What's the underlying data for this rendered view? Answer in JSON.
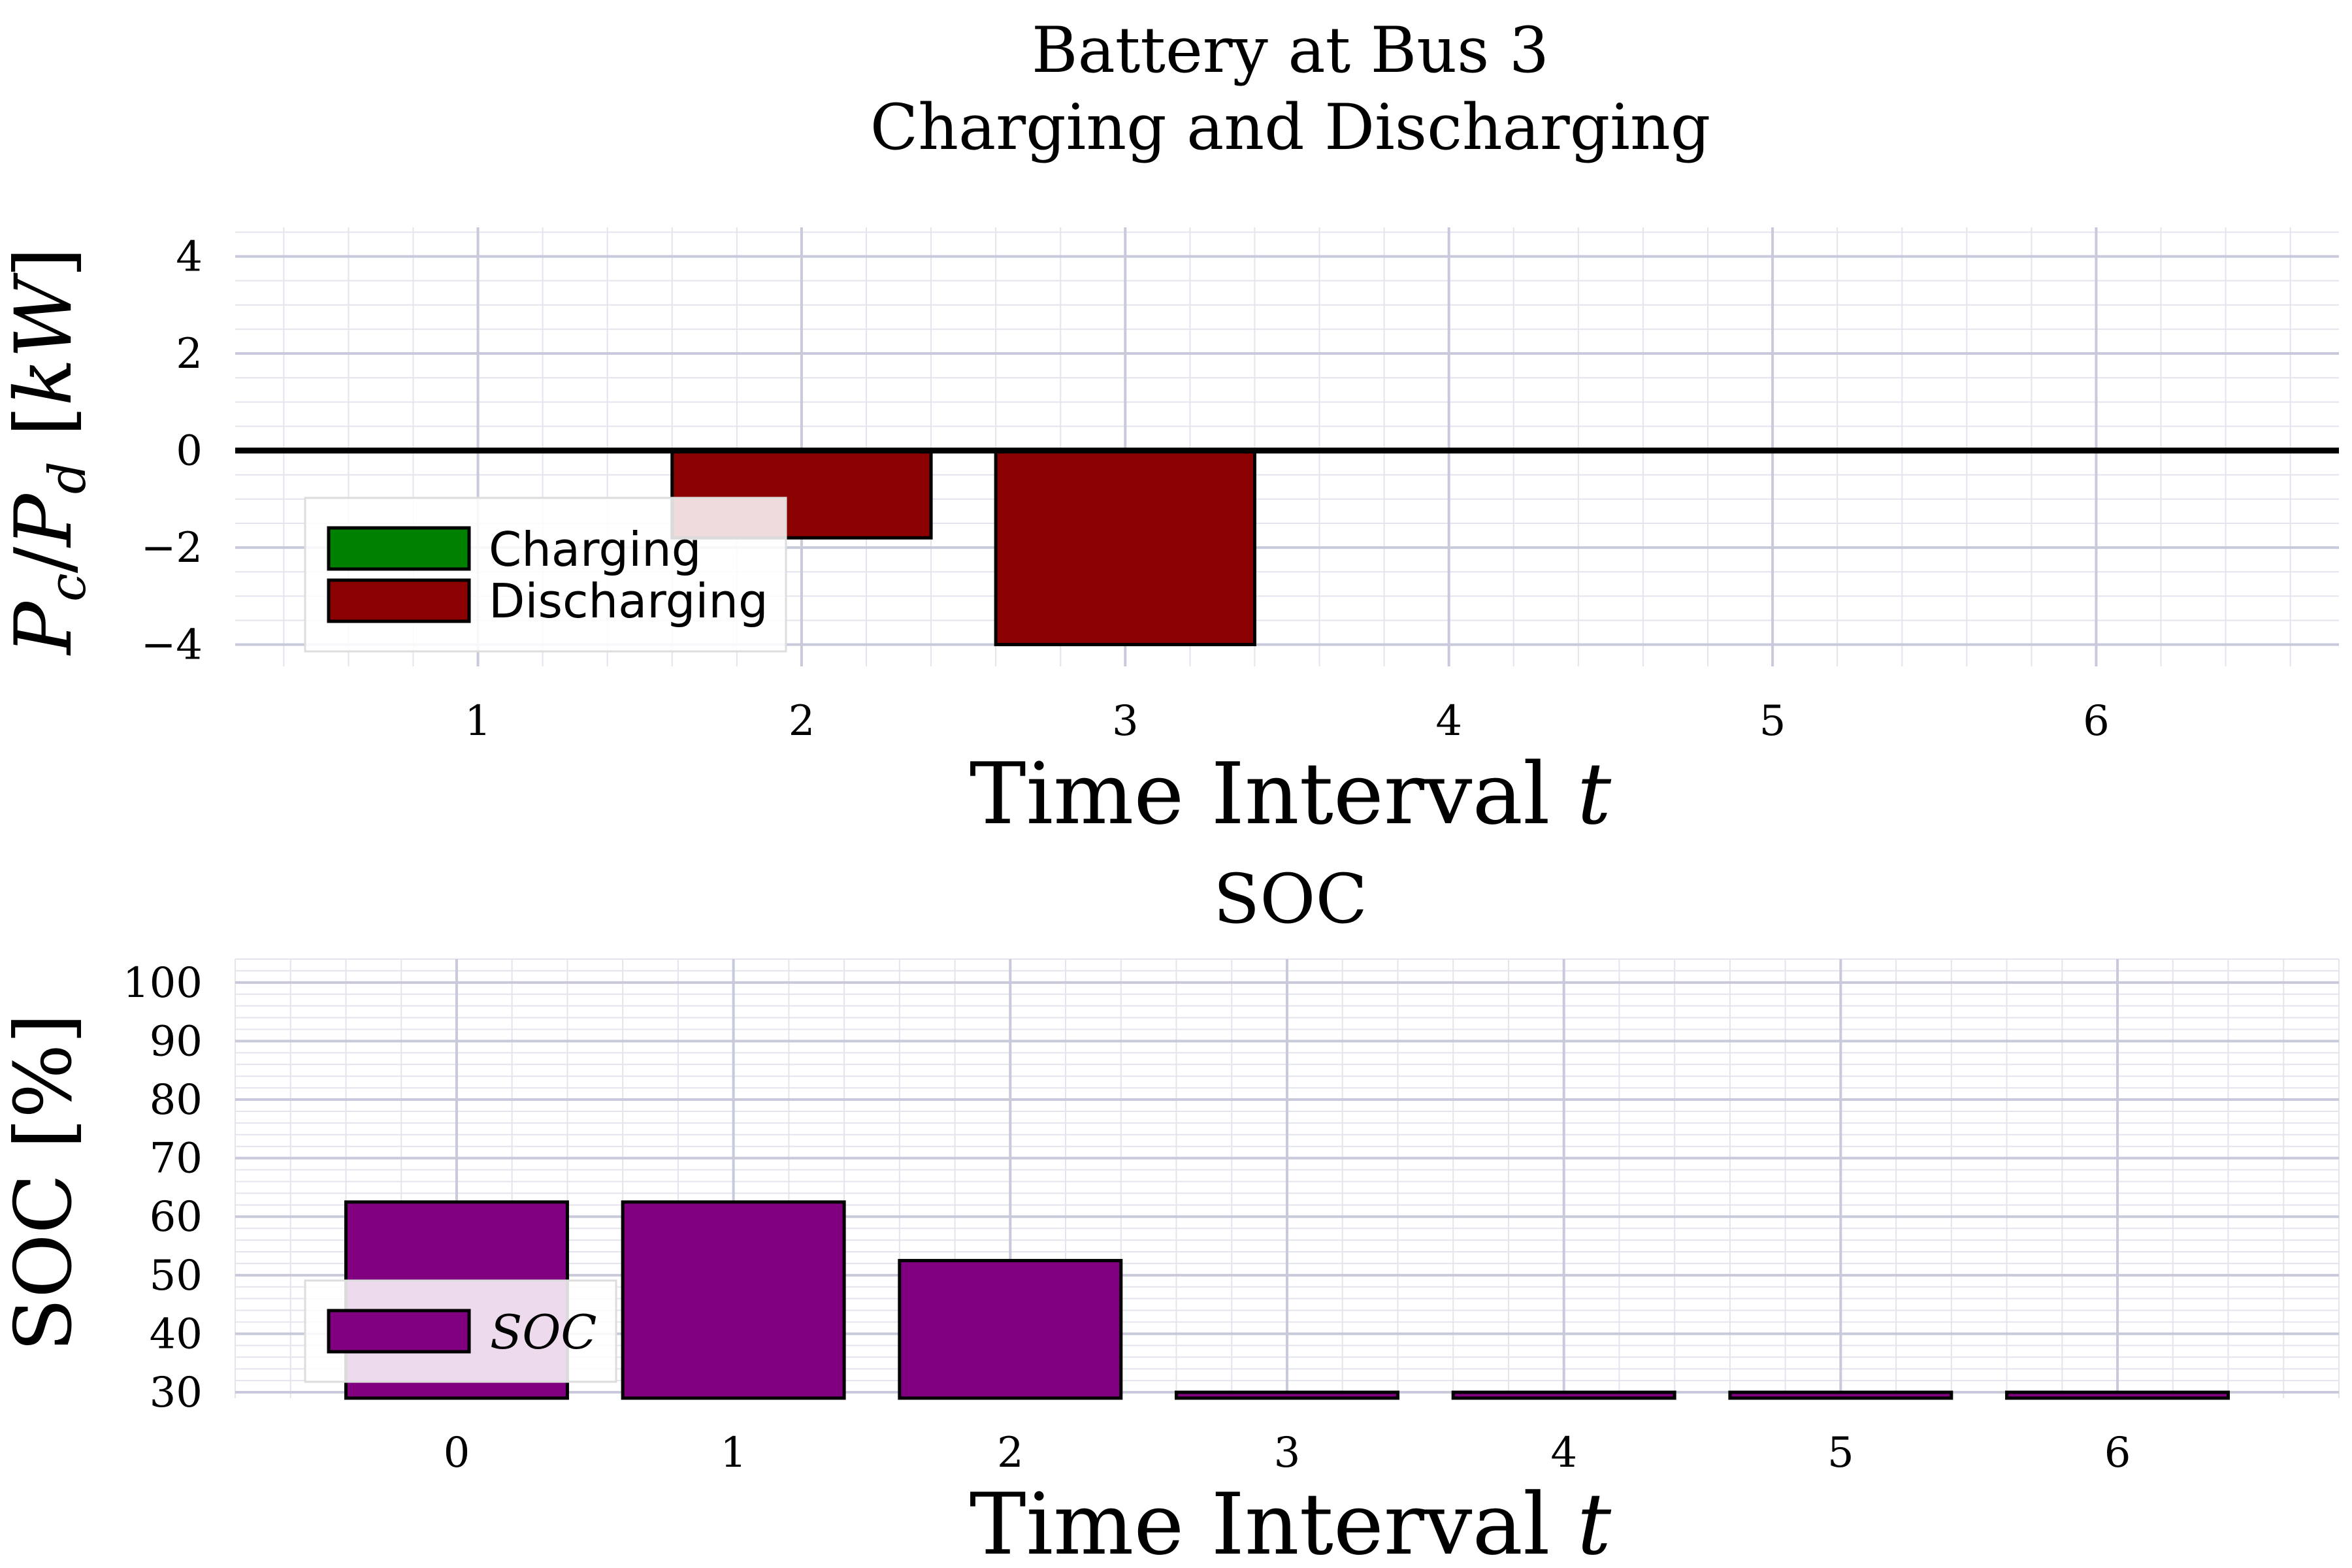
{
  "title_line1": "Battery at Bus 3",
  "title_line2": "Charging and Discharging",
  "charts": [
    {
      "type": "bar",
      "ylabel_main": "P",
      "ylabel_sub1": "c",
      "ylabel_slash": "/",
      "ylabel_sub2": "d",
      "ylabel_unit": "kW",
      "xlabel": "Time Interval",
      "xlabel_var": "t",
      "x": [
        1,
        2,
        3,
        4,
        5,
        6
      ],
      "xlim": [
        0.25,
        6.75
      ],
      "ylim": [
        -4.45,
        4.6
      ],
      "yticks": [
        -4,
        -2,
        0,
        2,
        4
      ],
      "ytick_labels": [
        "−4",
        "−2",
        "0",
        "2",
        "4"
      ],
      "series": [
        {
          "name": "Charging",
          "color": "#008000",
          "values": [
            0,
            0,
            0,
            0,
            0,
            0
          ]
        },
        {
          "name": "Discharging",
          "color": "#8b0000",
          "values": [
            0,
            -1.8,
            -4.0,
            0,
            0,
            0
          ]
        }
      ],
      "legend_loc": "lower-left",
      "grid": true
    },
    {
      "type": "bar",
      "title": "SOC",
      "ylabel": "SOC [%]",
      "xlabel": "Time Interval",
      "xlabel_var": "t",
      "x": [
        0,
        1,
        2,
        3,
        4,
        5,
        6
      ],
      "xlim": [
        -0.8,
        6.8
      ],
      "ylim": [
        29,
        104
      ],
      "yticks": [
        30,
        40,
        50,
        60,
        70,
        80,
        90,
        100
      ],
      "ytick_labels": [
        "30",
        "40",
        "50",
        "60",
        "70",
        "80",
        "90",
        "100"
      ],
      "series": [
        {
          "name": "SOC",
          "color": "#800080",
          "values": [
            62.5,
            62.5,
            52.5,
            30,
            30,
            30,
            30
          ]
        }
      ],
      "legend_loc": "lower-left",
      "grid": true
    }
  ],
  "colors": {
    "grid_major": "#c9c9dc",
    "grid_minor": "#e4e4ee",
    "axis": "#000000"
  }
}
